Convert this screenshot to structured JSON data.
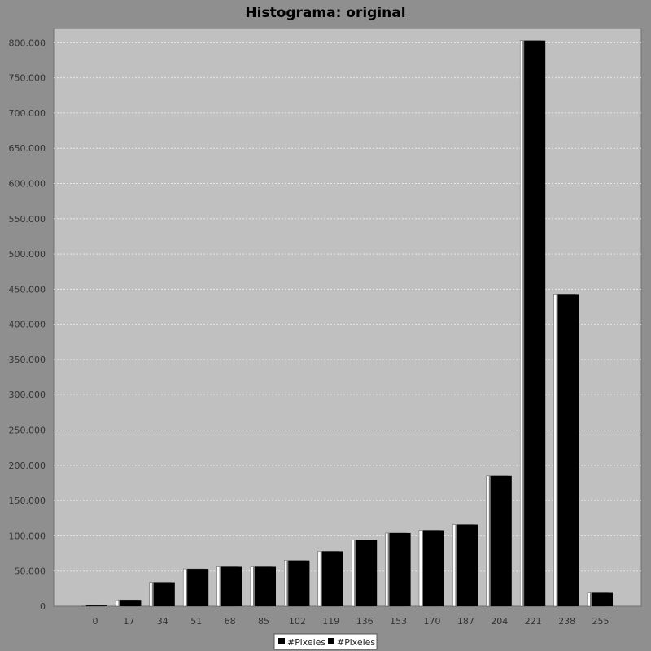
{
  "chart_data": {
    "type": "bar",
    "title": "Histograma: original",
    "xlabel": "",
    "ylabel": "",
    "categories": [
      "0",
      "17",
      "34",
      "51",
      "68",
      "85",
      "102",
      "119",
      "136",
      "153",
      "170",
      "187",
      "204",
      "221",
      "238",
      "255"
    ],
    "series": [
      {
        "name": "#Pixeles",
        "color": "#ffffff",
        "values": [
          1000,
          9000,
          34000,
          53000,
          56000,
          56000,
          65000,
          78000,
          94000,
          104000,
          108000,
          116000,
          185000,
          803000,
          443000,
          19000
        ]
      },
      {
        "name": "#Pixeles",
        "color": "#000000",
        "values": [
          1000,
          9000,
          34000,
          53000,
          56000,
          56000,
          65000,
          78000,
          94000,
          104000,
          108000,
          116000,
          185000,
          803000,
          443000,
          19000
        ]
      }
    ],
    "ylim": [
      0,
      820000
    ],
    "yticks": [
      0,
      50000,
      100000,
      150000,
      200000,
      250000,
      300000,
      350000,
      400000,
      450000,
      500000,
      550000,
      600000,
      650000,
      700000,
      750000,
      800000
    ],
    "ytick_labels": [
      "0",
      "50.000",
      "100.000",
      "150.000",
      "200.000",
      "250.000",
      "300.000",
      "350.000",
      "400.000",
      "450.000",
      "500.000",
      "550.000",
      "600.000",
      "650.000",
      "700.000",
      "750.000",
      "800.000"
    ],
    "grid": true,
    "legend": "bottom"
  },
  "colors": {
    "background": "#8f8f8f",
    "plot_background": "#c0c0c0",
    "grid": "#e6e6e6"
  }
}
